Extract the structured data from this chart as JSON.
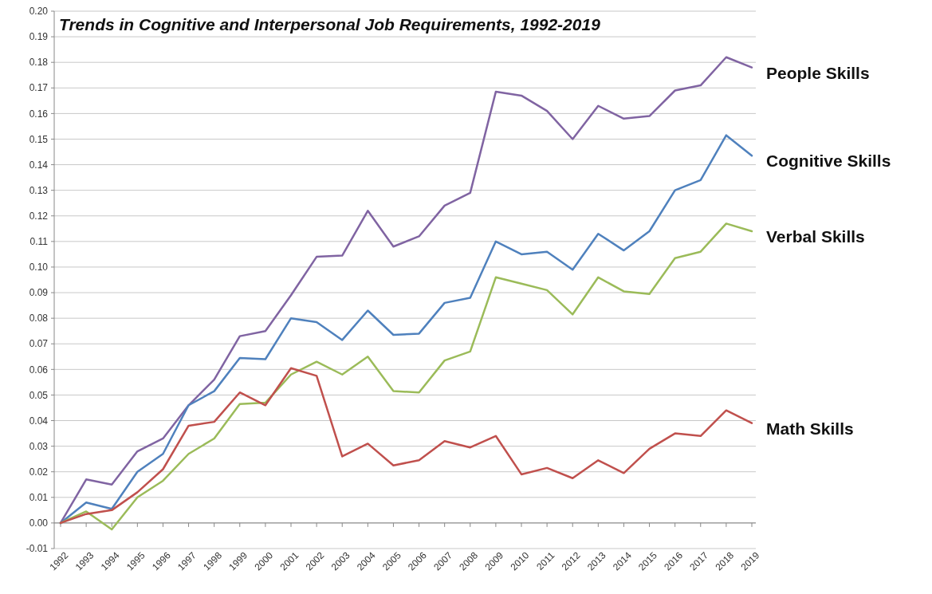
{
  "chart_data": {
    "type": "line",
    "title": "Trends in Cognitive and Interpersonal Job Requirements, 1992-2019",
    "categories": [
      "1992",
      "1993",
      "1994",
      "1995",
      "1996",
      "1997",
      "1998",
      "1999",
      "2000",
      "2001",
      "2002",
      "2003",
      "2004",
      "2005",
      "2006",
      "2007",
      "2008",
      "2009",
      "2010",
      "2011",
      "2012",
      "2013",
      "2014",
      "2015",
      "2016",
      "2017",
      "2018",
      "2019"
    ],
    "series": [
      {
        "name": "People Skills",
        "color": "#8064a2",
        "values": [
          0,
          0.017,
          0.015,
          0.028,
          0.033,
          0.046,
          0.056,
          0.073,
          0.075,
          0.089,
          0.104,
          0.1045,
          0.122,
          0.108,
          0.112,
          0.124,
          0.129,
          0.1685,
          0.167,
          0.161,
          0.15,
          0.163,
          0.158,
          0.159,
          0.169,
          0.171,
          0.182,
          0.178
        ]
      },
      {
        "name": "Cognitive Skills",
        "color": "#4f81bd",
        "values": [
          0,
          0.008,
          0.0055,
          0.02,
          0.027,
          0.046,
          0.0515,
          0.0645,
          0.064,
          0.08,
          0.0785,
          0.0715,
          0.083,
          0.0735,
          0.074,
          0.086,
          0.088,
          0.11,
          0.105,
          0.106,
          0.099,
          0.113,
          0.1065,
          0.114,
          0.13,
          0.134,
          0.1515,
          0.1435
        ]
      },
      {
        "name": "Verbal Skills",
        "color": "#9bbb59",
        "values": [
          0,
          0.0045,
          -0.0025,
          0.01,
          0.0165,
          0.027,
          0.033,
          0.0465,
          0.047,
          0.058,
          0.063,
          0.058,
          0.065,
          0.0515,
          0.051,
          0.0635,
          0.067,
          0.096,
          0.0935,
          0.091,
          0.0815,
          0.096,
          0.0905,
          0.0895,
          0.1035,
          0.106,
          0.117,
          0.114
        ]
      },
      {
        "name": "Math Skills",
        "color": "#c0504d",
        "values": [
          0,
          0.0035,
          0.005,
          0.012,
          0.021,
          0.038,
          0.0395,
          0.051,
          0.046,
          0.0605,
          0.0575,
          0.026,
          0.031,
          0.0225,
          0.0245,
          0.032,
          0.0295,
          0.034,
          0.019,
          0.0215,
          0.0175,
          0.0245,
          0.0195,
          0.029,
          0.035,
          0.034,
          0.044,
          0.039
        ]
      }
    ],
    "ylim": [
      -0.01,
      0.2
    ],
    "yticks": [
      {
        "value": -0.01,
        "label": "-0.01"
      },
      {
        "value": 0,
        "label": "0.00"
      },
      {
        "value": 0.01,
        "label": "0.01"
      },
      {
        "value": 0.02,
        "label": "0.02"
      },
      {
        "value": 0.03,
        "label": "0.03"
      },
      {
        "value": 0.04,
        "label": "0.04"
      },
      {
        "value": 0.05,
        "label": "0.05"
      },
      {
        "value": 0.06,
        "label": "0.06"
      },
      {
        "value": 0.07,
        "label": "0.07"
      },
      {
        "value": 0.08,
        "label": "0.08"
      },
      {
        "value": 0.09,
        "label": "0.09"
      },
      {
        "value": 0.1,
        "label": "0.10"
      },
      {
        "value": 0.11,
        "label": "0.11"
      },
      {
        "value": 0.12,
        "label": "0.12"
      },
      {
        "value": 0.13,
        "label": "0.13"
      },
      {
        "value": 0.14,
        "label": "0.14"
      },
      {
        "value": 0.15,
        "label": "0.15"
      },
      {
        "value": 0.16,
        "label": "0.16"
      },
      {
        "value": 0.17,
        "label": "0.17"
      },
      {
        "value": 0.18,
        "label": "0.18"
      },
      {
        "value": 0.19,
        "label": "0.19"
      },
      {
        "value": 0.2,
        "label": "0.20"
      }
    ],
    "grid": "y",
    "marker": "none",
    "line_style": "solid"
  }
}
